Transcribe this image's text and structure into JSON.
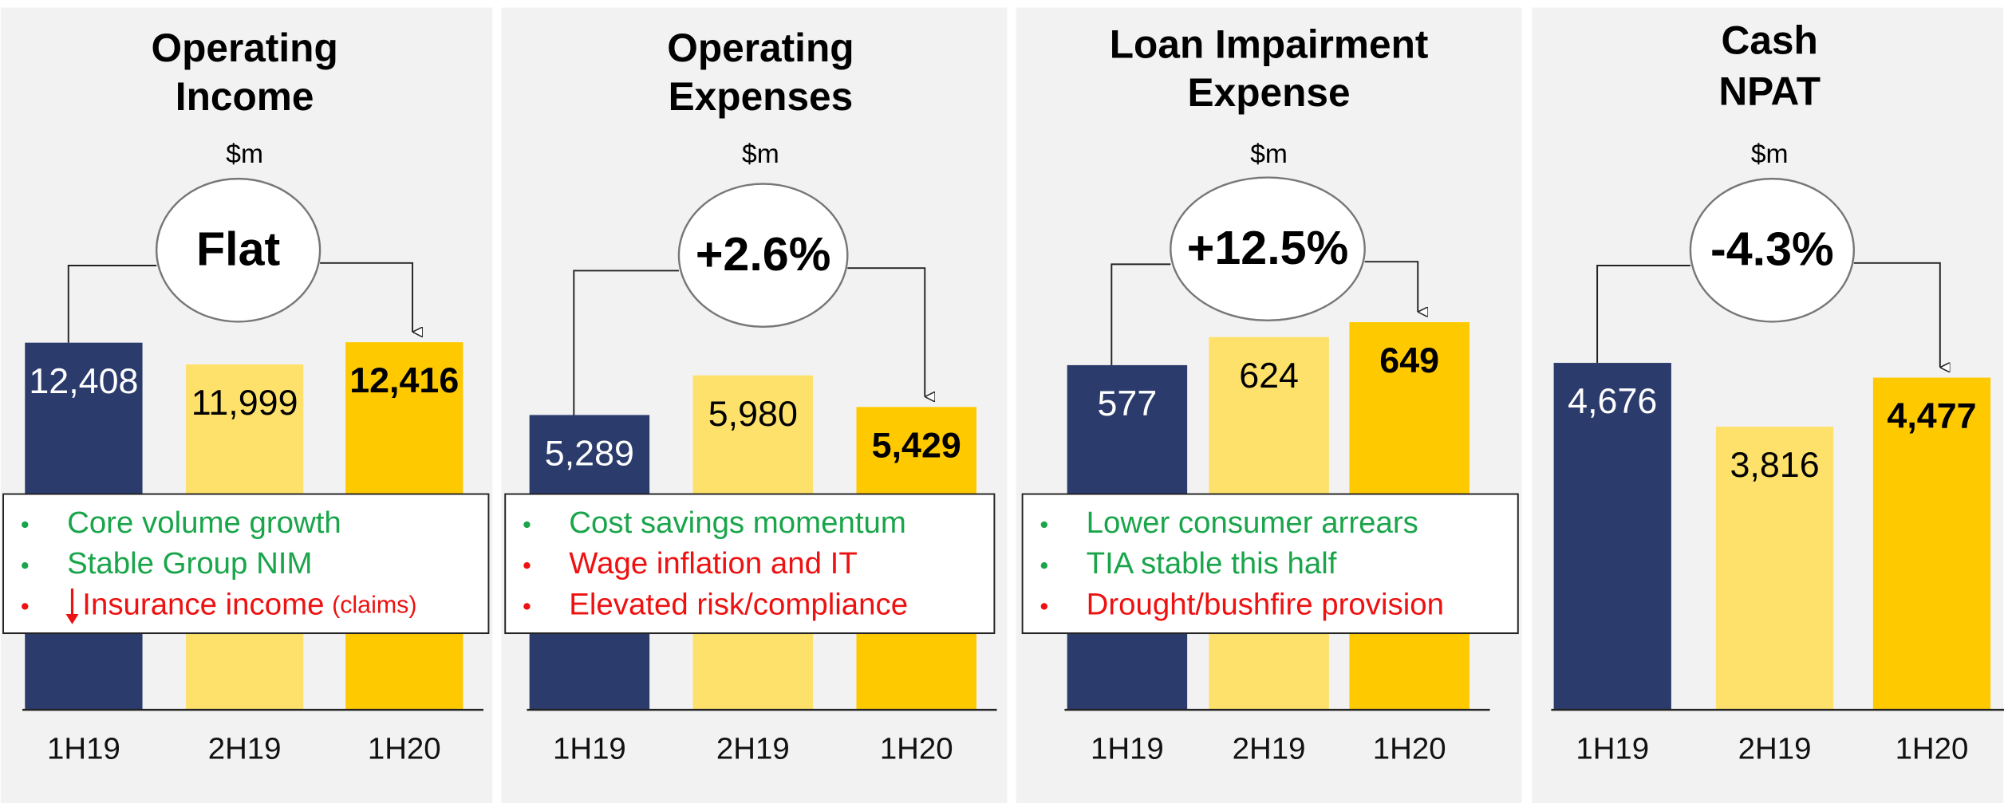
{
  "chart_data": [
    {
      "type": "bar",
      "title": [
        "Operating",
        "Income"
      ],
      "unit": "$m",
      "change": "Flat",
      "categories": [
        "1H19",
        "2H19",
        "1H20"
      ],
      "values": [
        12408,
        11999,
        12416
      ],
      "value_labels": [
        "12,408",
        "11,999",
        "12,416"
      ],
      "colors": [
        "#2b3c6c",
        "#fde16b",
        "#ffc900"
      ],
      "ylim": [
        5500,
        12850
      ],
      "bullets": [
        {
          "text": "Core volume growth",
          "color": "#1aa54b"
        },
        {
          "text": "Stable Group NIM",
          "color": "#1aa54b"
        },
        {
          "text": "Insurance income",
          "note": "(claims)",
          "arrow": "down",
          "color": "#ee1111"
        }
      ]
    },
    {
      "type": "bar",
      "title": [
        "Operating",
        "Expenses"
      ],
      "unit": "$m",
      "change": "+2.6%",
      "categories": [
        "1H19",
        "2H19",
        "1H20"
      ],
      "values": [
        5289,
        5980,
        5429
      ],
      "value_labels": [
        "5,289",
        "5,980",
        "5,429"
      ],
      "colors": [
        "#2b3c6c",
        "#fde16b",
        "#ffc900"
      ],
      "ylim": [
        150,
        6960
      ],
      "bullets": [
        {
          "text": "Cost savings momentum",
          "color": "#1aa54b"
        },
        {
          "text": "Wage inflation and IT",
          "color": "#ee1111"
        },
        {
          "text": "Elevated risk/compliance",
          "color": "#ee1111"
        }
      ]
    },
    {
      "type": "bar",
      "title": [
        "Loan Impairment",
        "Expense"
      ],
      "unit": "$m",
      "change": "+12.5%",
      "categories": [
        "1H19",
        "2H19",
        "1H20"
      ],
      "values": [
        577,
        624,
        649
      ],
      "colors": [
        "#2b3c6c",
        "#fde16b",
        "#ffc900"
      ],
      "ylim": [
        0,
        654
      ],
      "bullets": [
        {
          "text": "Lower consumer arrears",
          "color": "#1aa54b"
        },
        {
          "text": "TIA stable this half",
          "color": "#1aa54b"
        },
        {
          "text": "Drought/bushfire provision",
          "color": "#ee1111"
        }
      ]
    },
    {
      "type": "bar",
      "title": [
        "Cash",
        "NPAT"
      ],
      "unit": "$m",
      "change": "-4.3%",
      "categories": [
        "1H19",
        "2H19",
        "1H20"
      ],
      "values": [
        4676,
        3816,
        4477
      ],
      "value_labels": [
        "4,676",
        "3,816",
        "4,477"
      ],
      "colors": [
        "#2b3c6c",
        "#fde16b",
        "#ffc900"
      ],
      "ylim": [
        0,
        5265
      ]
    }
  ]
}
